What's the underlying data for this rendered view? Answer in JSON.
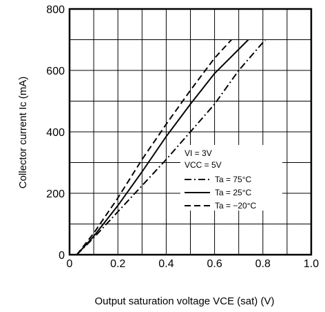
{
  "chart_data": {
    "type": "line",
    "xlabel": "Output saturation voltage  VCE (sat) (V)",
    "ylabel": "Collector current  Ic (mA)",
    "xlim": [
      0,
      1.0
    ],
    "ylim": [
      0,
      800
    ],
    "x_ticks": [
      0,
      0.2,
      0.4,
      0.6,
      0.8,
      1.0
    ],
    "x_tick_labels": [
      "0",
      "0.2",
      "0.4",
      "0.6",
      "0.8",
      "1.0"
    ],
    "y_ticks": [
      0,
      200,
      400,
      600,
      800
    ],
    "y_tick_labels": [
      "0",
      "200",
      "400",
      "600",
      "800"
    ],
    "grid": true,
    "grid_step_x": 0.1,
    "grid_step_y": 100,
    "conditions": [
      "VI = 3V",
      "VCC = 5V"
    ],
    "legend_position": "center-right",
    "series": [
      {
        "name": "Ta = 75°C",
        "style": "dashdot",
        "x": [
          0.03,
          0.1,
          0.2,
          0.3,
          0.4,
          0.5,
          0.6,
          0.7,
          0.81
        ],
        "y": [
          0,
          55,
          140,
          225,
          310,
          400,
          490,
          600,
          700
        ]
      },
      {
        "name": "Ta = 25°C",
        "style": "solid",
        "x": [
          0.03,
          0.1,
          0.2,
          0.3,
          0.4,
          0.5,
          0.6,
          0.74
        ],
        "y": [
          0,
          60,
          160,
          270,
          385,
          490,
          590,
          700
        ]
      },
      {
        "name": "Ta = −20°C",
        "style": "dashed",
        "x": [
          0.03,
          0.1,
          0.2,
          0.3,
          0.4,
          0.5,
          0.6,
          0.67
        ],
        "y": [
          0,
          70,
          185,
          310,
          425,
          535,
          640,
          700
        ]
      }
    ]
  }
}
